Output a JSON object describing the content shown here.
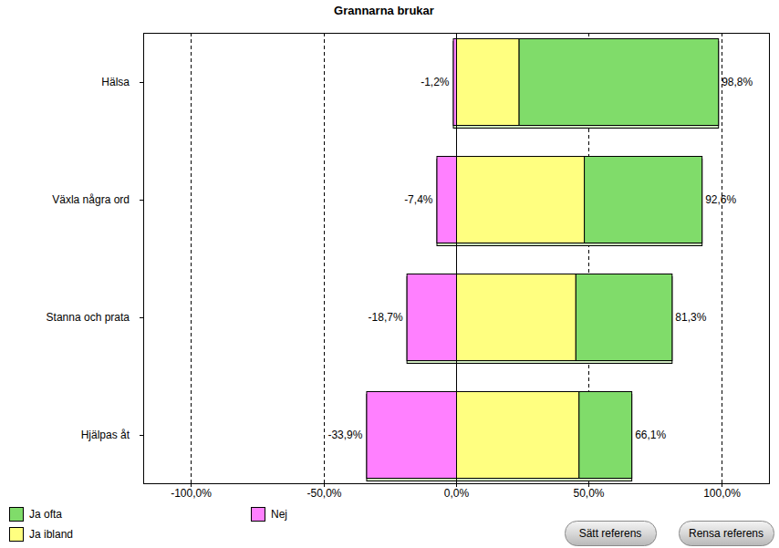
{
  "chart_data": {
    "type": "bar",
    "title": "Grannarna brukar",
    "orientation": "horizontal",
    "stacked": true,
    "grid": true,
    "data_labels": true,
    "legend": "bottom-left",
    "categories": [
      "Hälsa",
      "Växla några ord",
      "Stanna och prata",
      "Hjälpas åt"
    ],
    "series": [
      {
        "name": "Ja ofta",
        "color": "#80dc6a",
        "values": [
          75.2,
          44.4,
          36.3,
          19.9
        ]
      },
      {
        "name": "Ja ibland",
        "color": "#ffff80",
        "values": [
          23.6,
          48.2,
          45.0,
          46.2
        ]
      },
      {
        "name": "Nej",
        "color": "#ff80ff",
        "values": [
          -1.2,
          -7.4,
          -18.7,
          -33.9
        ],
        "value_labels": [
          "-1,2%",
          "-7,4%",
          "-18,7%",
          "-33,9%"
        ]
      }
    ],
    "totals": {
      "values": [
        98.8,
        92.6,
        81.3,
        66.1
      ],
      "value_labels": [
        "98,8%",
        "92,6%",
        "81,3%",
        "66,1%"
      ]
    },
    "xlim": [
      -118,
      118
    ],
    "xticks": [
      {
        "value": -100,
        "label": "-100,0%"
      },
      {
        "value": -50,
        "label": "-50,0%"
      },
      {
        "value": 0,
        "label": "0,0%"
      },
      {
        "value": 50,
        "label": "50,0%"
      },
      {
        "value": 100,
        "label": "100,0%"
      }
    ]
  },
  "buttons": [
    "Sätt referens",
    "Rensa referens"
  ]
}
